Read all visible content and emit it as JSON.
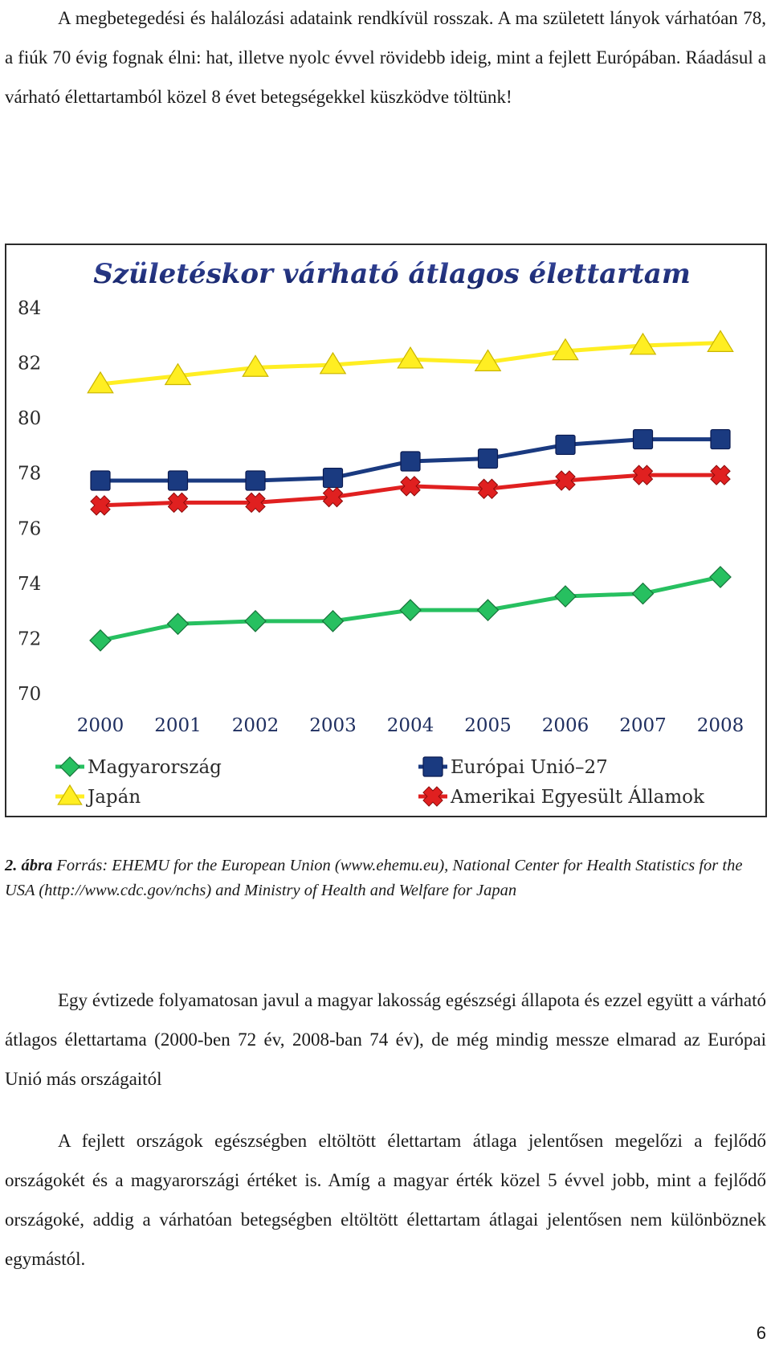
{
  "paragraphs": {
    "intro": "A megbetegedési és halálozási adataink rendkívül rosszak. A ma született lányok várhatóan 78, a fiúk 70 évig fognak élni: hat, illetve nyolc évvel rövidebb ideig, mint a fejlett Európában. Ráadásul a várható élettartamból közel 8 évet betegségekkel küszködve töltünk!",
    "second": "Egy évtizede folyamatosan javul a magyar lakosság egészségi állapota és ezzel együtt a várható átlagos élettartama (2000-ben 72 év, 2008-ban 74 év), de még mindig messze elmarad az Európai Unió más országaitól",
    "third": "A fejlett országok egészségben eltöltött élettartam átlaga jelentősen megelőzi a fejlődő országokét és a magyarországi értéket is. Amíg a magyar érték közel 5 évvel jobb, mint a fejlődő országoké, addig a várhatóan betegségben eltöltött élettartam átlagai jelentősen nem különböznek egymástól."
  },
  "caption": {
    "label": "2. ábra",
    "text": " Forrás: EHEMU for the European Union (www.ehemu.eu), National Center for Health Statistics for the USA (http://www.cdc.gov/nchs) and Ministry of Health and Welfare for Japan"
  },
  "page_number": "6",
  "chart_data": {
    "type": "line",
    "title": "Születéskor várható átlagos élettartam",
    "x": [
      "2000",
      "2001",
      "2002",
      "2003",
      "2004",
      "2005",
      "2006",
      "2007",
      "2008"
    ],
    "ylim": [
      70,
      84
    ],
    "yticks": [
      "84",
      "82",
      "80",
      "78",
      "76",
      "74",
      "72",
      "70"
    ],
    "grid": false,
    "legend_position": "bottom",
    "series": [
      {
        "name": "Japán",
        "marker": "triangle",
        "color": "#ffee22",
        "values": [
          81.2,
          81.5,
          81.8,
          81.9,
          82.1,
          82.0,
          82.4,
          82.6,
          82.7
        ]
      },
      {
        "name": "Európai Unió–27",
        "marker": "square",
        "color": "#1a3a80",
        "values": [
          77.7,
          77.7,
          77.7,
          77.8,
          78.4,
          78.5,
          79.0,
          79.2,
          79.2
        ]
      },
      {
        "name": "Amerikai Egyesült Államok",
        "marker": "cross",
        "color": "#e02020",
        "values": [
          76.8,
          76.9,
          76.9,
          77.1,
          77.5,
          77.4,
          77.7,
          77.9,
          77.9
        ]
      },
      {
        "name": "Magyarország",
        "marker": "diamond",
        "color": "#27c060",
        "values": [
          71.9,
          72.5,
          72.6,
          72.6,
          73.0,
          73.0,
          73.5,
          73.6,
          74.2
        ]
      }
    ]
  }
}
